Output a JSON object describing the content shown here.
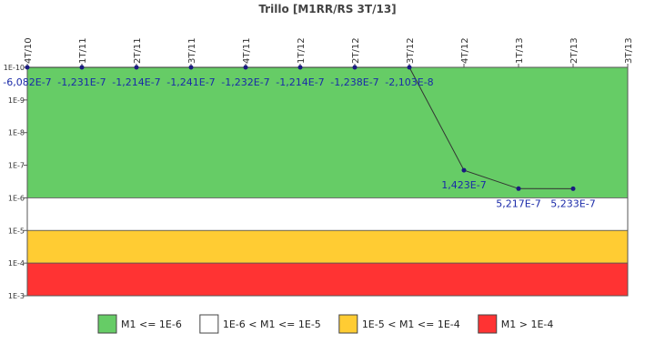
{
  "chart_data": {
    "type": "line",
    "title": "Trillo [M1RR/RS 3T/13]",
    "categories": [
      "4T/10",
      "1T/11",
      "2T/11",
      "3T/11",
      "4T/11",
      "1T/12",
      "2T/12",
      "3T/12",
      "4T/12",
      "1T/13",
      "2T/13",
      "3T/13"
    ],
    "series": [
      {
        "color": "#1a1a80",
        "values": [
          -6.082e-07,
          -1.231e-07,
          -1.214e-07,
          -1.241e-07,
          -1.232e-07,
          -1.214e-07,
          -1.238e-07,
          -2.103e-08,
          1.423e-07,
          5.217e-07,
          5.233e-07,
          null
        ],
        "value_labels": [
          "-6,082E-7",
          "-1,231E-7",
          "-1,214E-7",
          "-1,241E-7",
          "-1,232E-7",
          "-1,214E-7",
          "-1,238E-7",
          "-2,103E-8",
          "1,423E-7",
          "5,217E-7",
          "5,233E-7",
          null
        ]
      }
    ],
    "ylim": [
      1e-10,
      0.001
    ],
    "log_scale": true,
    "y_inverted": true,
    "yticks": [
      {
        "value": 1e-10,
        "label": "1E-10"
      },
      {
        "value": 1e-09,
        "label": "1E-9"
      },
      {
        "value": 1e-08,
        "label": "1E-8"
      },
      {
        "value": 1e-07,
        "label": "1E-7"
      },
      {
        "value": 1e-06,
        "label": "1E-6"
      },
      {
        "value": 1e-05,
        "label": "1E-5"
      },
      {
        "value": 0.0001,
        "label": "1E-4"
      },
      {
        "value": 0.001,
        "label": "1E-3"
      }
    ],
    "bands": [
      {
        "name": "M1 <= 1E-6",
        "color": "#66cc66",
        "range": [
          1e-10,
          1e-06
        ]
      },
      {
        "name": "1E-6 < M1 <= 1E-5",
        "color": "#ffffff",
        "range": [
          1e-06,
          1e-05
        ]
      },
      {
        "name": "1E-5 < M1 <= 1E-4",
        "color": "#ffcc33",
        "range": [
          1e-05,
          0.0001
        ]
      },
      {
        "name": "M1 > 1E-4",
        "color": "#ff3333",
        "range": [
          0.0001,
          0.001
        ]
      }
    ]
  }
}
